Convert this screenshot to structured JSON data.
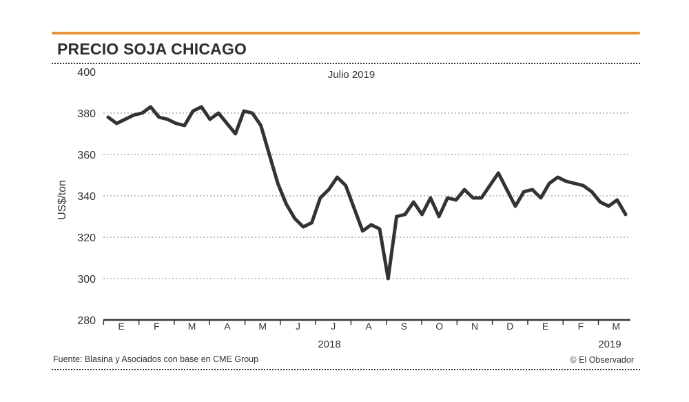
{
  "header": {
    "title": "PRECIO SOJA CHICAGO"
  },
  "footer": {
    "source": "Fuente: Blasina y Asociados con base en CME Group",
    "credit": "© El Observador"
  },
  "colors": {
    "accent": "#e8913a",
    "line": "#333333",
    "grid": "#9a9a9a"
  },
  "chart_data": {
    "type": "line",
    "subtitle": "Julio 2019",
    "ylabel": "US$/ton",
    "xlabel": "",
    "ylim": [
      280,
      400
    ],
    "yticks": [
      280,
      300,
      320,
      340,
      360,
      380,
      400
    ],
    "grid": "horizontal dotted",
    "month_labels": [
      "E",
      "F",
      "M",
      "A",
      "M",
      "J",
      "J",
      "A",
      "S",
      "O",
      "N",
      "D",
      "E",
      "F",
      "M"
    ],
    "year_labels": [
      "2018",
      "2019"
    ],
    "series": [
      {
        "values": [
          378,
          375,
          377,
          379,
          380,
          383,
          378,
          377,
          375,
          374,
          381,
          383,
          377,
          380,
          375,
          370,
          381,
          380,
          374,
          360,
          346,
          336,
          329,
          325,
          327,
          339,
          343,
          349,
          345,
          334,
          323,
          326,
          324,
          300,
          330,
          331,
          337,
          331,
          339,
          330,
          339,
          338,
          343,
          339,
          339,
          345,
          351,
          343,
          335,
          342,
          343,
          339,
          346,
          349,
          347,
          346,
          345,
          342,
          337,
          335,
          338,
          331
        ]
      }
    ]
  }
}
